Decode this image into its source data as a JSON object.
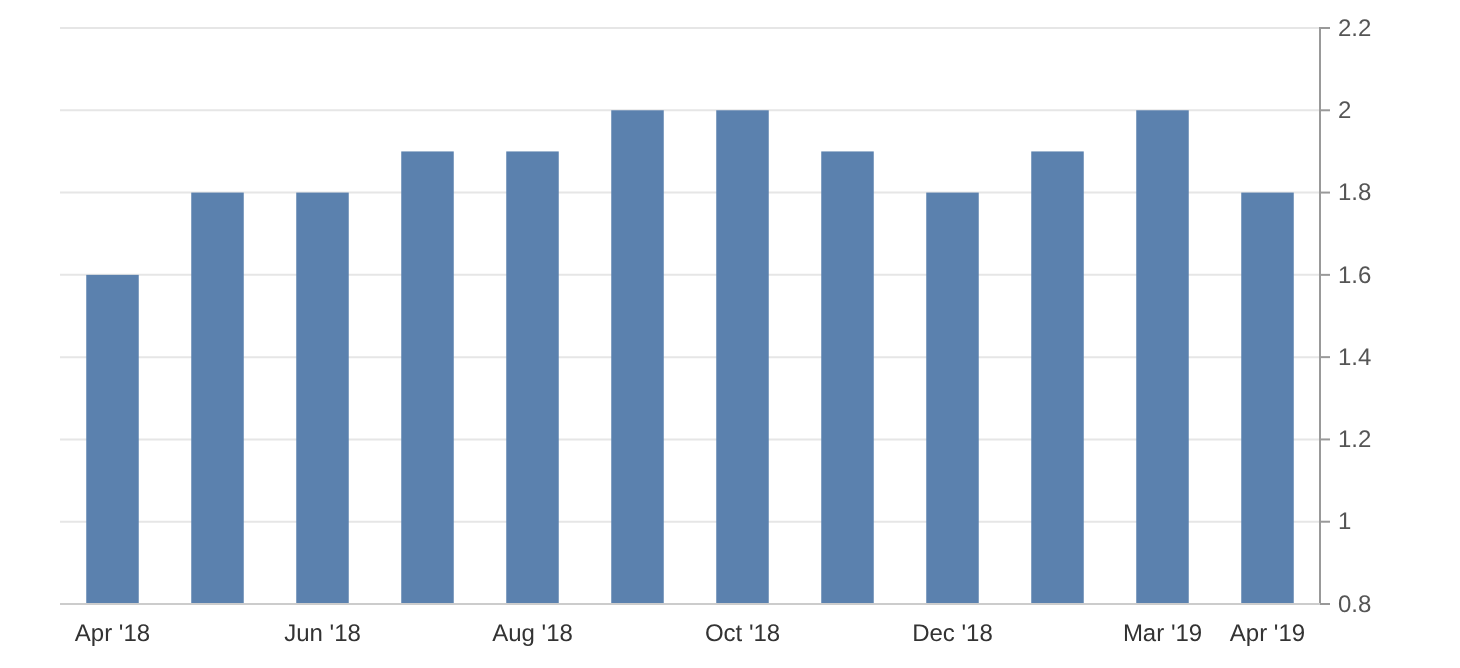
{
  "chart_data": {
    "type": "bar",
    "categories": [
      "Apr '18",
      null,
      "Jun '18",
      null,
      "Aug '18",
      null,
      "Oct '18",
      null,
      "Dec '18",
      null,
      "Mar '19",
      "Apr '19"
    ],
    "values": [
      1.6,
      1.8,
      1.8,
      1.9,
      1.9,
      2.0,
      2.0,
      1.9,
      1.8,
      1.9,
      2.0,
      1.8
    ],
    "color": "#5b81ae",
    "ylim": [
      0.8,
      2.2
    ],
    "yticks": [
      0.8,
      1,
      1.2,
      1.4,
      1.6,
      1.8,
      2,
      2.2
    ],
    "grid": "y"
  }
}
